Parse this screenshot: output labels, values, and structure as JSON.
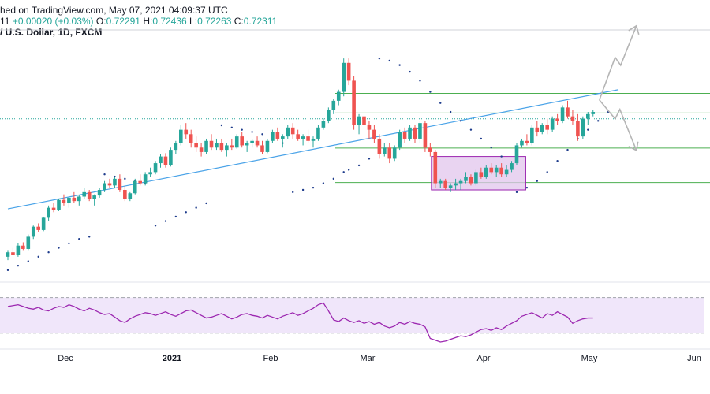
{
  "header": {
    "published": "hed on TradingView.com, May 07, 2021 04:09:37 UTC",
    "change_prefix": "11",
    "change": "+0.00020 (+0.03%)",
    "o_label": "O:",
    "o": "0.72291",
    "h_label": "H:",
    "h": "0.72436",
    "l_label": "L:",
    "l": "0.72263",
    "c_label": "C:",
    "c": "0.72311",
    "symbol": "/ U.S. Dollar, 1D, FXCM"
  },
  "colors": {
    "up": "#26a69a",
    "down": "#ef5350",
    "psar": "#1e3c8c",
    "trendline": "#4aa3e8",
    "levels": "#4caf50",
    "rsi": "#9c27b0",
    "rsi_band": "#e8d9f7",
    "box_fill": "#e1c6ec",
    "box_border": "#9c27b0",
    "arrows": "#b5b5b5"
  },
  "chart_data": {
    "type": "candlestick",
    "timeframe": "1D",
    "x_labels": [
      "Dec",
      "2021",
      "Feb",
      "Mar",
      "Apr",
      "May",
      "Jun"
    ],
    "candles": [
      [
        0.711,
        0.714,
        0.7095,
        0.713
      ],
      [
        0.713,
        0.715,
        0.712,
        0.712
      ],
      [
        0.712,
        0.717,
        0.711,
        0.716
      ],
      [
        0.716,
        0.7175,
        0.714,
        0.7145
      ],
      [
        0.7145,
        0.721,
        0.714,
        0.72
      ],
      [
        0.72,
        0.725,
        0.719,
        0.7245
      ],
      [
        0.7245,
        0.726,
        0.722,
        0.723
      ],
      [
        0.723,
        0.729,
        0.7225,
        0.7285
      ],
      [
        0.7285,
        0.734,
        0.727,
        0.733
      ],
      [
        0.733,
        0.735,
        0.731,
        0.732
      ],
      [
        0.732,
        0.737,
        0.7315,
        0.7365
      ],
      [
        0.7365,
        0.739,
        0.734,
        0.735
      ],
      [
        0.735,
        0.738,
        0.733,
        0.7375
      ],
      [
        0.7375,
        0.74,
        0.735,
        0.736
      ],
      [
        0.736,
        0.7385,
        0.734,
        0.738
      ],
      [
        0.738,
        0.742,
        0.737,
        0.74
      ],
      [
        0.74,
        0.741,
        0.736,
        0.737
      ],
      [
        0.737,
        0.739,
        0.734,
        0.7385
      ],
      [
        0.7385,
        0.742,
        0.7375,
        0.741
      ],
      [
        0.741,
        0.745,
        0.74,
        0.744
      ],
      [
        0.744,
        0.746,
        0.742,
        0.743
      ],
      [
        0.743,
        0.747,
        0.742,
        0.746
      ],
      [
        0.746,
        0.748,
        0.74,
        0.741
      ],
      [
        0.741,
        0.743,
        0.736,
        0.737
      ],
      [
        0.737,
        0.74,
        0.736,
        0.7395
      ],
      [
        0.7395,
        0.746,
        0.739,
        0.745
      ],
      [
        0.745,
        0.748,
        0.743,
        0.744
      ],
      [
        0.744,
        0.749,
        0.743,
        0.748
      ],
      [
        0.748,
        0.751,
        0.747,
        0.749
      ],
      [
        0.749,
        0.754,
        0.748,
        0.753
      ],
      [
        0.753,
        0.757,
        0.751,
        0.756
      ],
      [
        0.756,
        0.7575,
        0.751,
        0.752
      ],
      [
        0.752,
        0.76,
        0.7515,
        0.759
      ],
      [
        0.759,
        0.763,
        0.757,
        0.762
      ],
      [
        0.762,
        0.77,
        0.761,
        0.768
      ],
      [
        0.768,
        0.771,
        0.764,
        0.766
      ],
      [
        0.766,
        0.768,
        0.76,
        0.762
      ],
      [
        0.762,
        0.765,
        0.758,
        0.76
      ],
      [
        0.76,
        0.762,
        0.756,
        0.758
      ],
      [
        0.758,
        0.764,
        0.757,
        0.763
      ],
      [
        0.763,
        0.766,
        0.759,
        0.76
      ],
      [
        0.76,
        0.764,
        0.759,
        0.762
      ],
      [
        0.762,
        0.764,
        0.758,
        0.759
      ],
      [
        0.759,
        0.762,
        0.756,
        0.761
      ],
      [
        0.761,
        0.764,
        0.759,
        0.76
      ],
      [
        0.76,
        0.766,
        0.7595,
        0.765
      ],
      [
        0.765,
        0.767,
        0.76,
        0.761
      ],
      [
        0.761,
        0.763,
        0.758,
        0.762
      ],
      [
        0.762,
        0.764,
        0.76,
        0.763
      ],
      [
        0.763,
        0.765,
        0.76,
        0.761
      ],
      [
        0.761,
        0.763,
        0.757,
        0.758
      ],
      [
        0.758,
        0.764,
        0.7575,
        0.763
      ],
      [
        0.763,
        0.768,
        0.762,
        0.767
      ],
      [
        0.767,
        0.769,
        0.763,
        0.764
      ],
      [
        0.764,
        0.766,
        0.76,
        0.765
      ],
      [
        0.765,
        0.77,
        0.764,
        0.769
      ],
      [
        0.769,
        0.771,
        0.764,
        0.766
      ],
      [
        0.766,
        0.768,
        0.763,
        0.764
      ],
      [
        0.764,
        0.766,
        0.761,
        0.765
      ],
      [
        0.765,
        0.768,
        0.762,
        0.763
      ],
      [
        0.763,
        0.765,
        0.76,
        0.764
      ],
      [
        0.764,
        0.77,
        0.763,
        0.769
      ],
      [
        0.769,
        0.773,
        0.768,
        0.772
      ],
      [
        0.772,
        0.778,
        0.771,
        0.777
      ],
      [
        0.777,
        0.782,
        0.775,
        0.781
      ],
      [
        0.781,
        0.786,
        0.779,
        0.785
      ],
      [
        0.785,
        0.8,
        0.783,
        0.798
      ],
      [
        0.798,
        0.8,
        0.788,
        0.79
      ],
      [
        0.79,
        0.792,
        0.768,
        0.77
      ],
      [
        0.77,
        0.775,
        0.766,
        0.774
      ],
      [
        0.774,
        0.776,
        0.768,
        0.77
      ],
      [
        0.77,
        0.772,
        0.764,
        0.768
      ],
      [
        0.768,
        0.77,
        0.762,
        0.764
      ],
      [
        0.764,
        0.766,
        0.755,
        0.757
      ],
      [
        0.757,
        0.762,
        0.756,
        0.76
      ],
      [
        0.76,
        0.762,
        0.753,
        0.755
      ],
      [
        0.755,
        0.761,
        0.754,
        0.76
      ],
      [
        0.76,
        0.768,
        0.759,
        0.767
      ],
      [
        0.767,
        0.769,
        0.762,
        0.764
      ],
      [
        0.764,
        0.77,
        0.763,
        0.769
      ],
      [
        0.769,
        0.77,
        0.762,
        0.764
      ],
      [
        0.764,
        0.772,
        0.762,
        0.771
      ],
      [
        0.771,
        0.772,
        0.758,
        0.76
      ],
      [
        0.76,
        0.762,
        0.756,
        0.758
      ],
      [
        0.758,
        0.759,
        0.742,
        0.744
      ],
      [
        0.744,
        0.746,
        0.742,
        0.745
      ],
      [
        0.745,
        0.746,
        0.741,
        0.742
      ],
      [
        0.742,
        0.744,
        0.74,
        0.743
      ],
      [
        0.743,
        0.746,
        0.741,
        0.744
      ],
      [
        0.744,
        0.746,
        0.741,
        0.745
      ],
      [
        0.745,
        0.749,
        0.744,
        0.747
      ],
      [
        0.747,
        0.748,
        0.743,
        0.744
      ],
      [
        0.744,
        0.75,
        0.743,
        0.749
      ],
      [
        0.749,
        0.751,
        0.746,
        0.747
      ],
      [
        0.747,
        0.752,
        0.746,
        0.751
      ],
      [
        0.751,
        0.753,
        0.748,
        0.749
      ],
      [
        0.749,
        0.752,
        0.747,
        0.751
      ],
      [
        0.751,
        0.753,
        0.747,
        0.748
      ],
      [
        0.748,
        0.752,
        0.747,
        0.75
      ],
      [
        0.75,
        0.754,
        0.749,
        0.753
      ],
      [
        0.753,
        0.762,
        0.752,
        0.761
      ],
      [
        0.761,
        0.764,
        0.76,
        0.763
      ],
      [
        0.763,
        0.766,
        0.761,
        0.762
      ],
      [
        0.762,
        0.77,
        0.761,
        0.769
      ],
      [
        0.769,
        0.772,
        0.765,
        0.767
      ],
      [
        0.767,
        0.771,
        0.766,
        0.77
      ],
      [
        0.77,
        0.773,
        0.766,
        0.768
      ],
      [
        0.768,
        0.774,
        0.767,
        0.773
      ],
      [
        0.773,
        0.775,
        0.77,
        0.772
      ],
      [
        0.772,
        0.779,
        0.771,
        0.778
      ],
      [
        0.778,
        0.781,
        0.773,
        0.774
      ],
      [
        0.774,
        0.777,
        0.77,
        0.772
      ],
      [
        0.772,
        0.775,
        0.763,
        0.765
      ],
      [
        0.765,
        0.774,
        0.764,
        0.773
      ],
      [
        0.773,
        0.776,
        0.77,
        0.775
      ],
      [
        0.775,
        0.777,
        0.774,
        0.776
      ]
    ],
    "psar": [
      [
        0,
        0.705
      ],
      [
        2,
        0.707
      ],
      [
        4,
        0.709
      ],
      [
        6,
        0.711
      ],
      [
        8,
        0.713
      ],
      [
        10,
        0.715
      ],
      [
        12,
        0.717
      ],
      [
        14,
        0.719
      ],
      [
        16,
        0.72
      ],
      [
        19,
        0.748
      ],
      [
        21,
        0.747
      ],
      [
        23,
        0.746
      ],
      [
        25,
        0.745
      ],
      [
        27,
        0.744
      ],
      [
        29,
        0.725
      ],
      [
        31,
        0.727
      ],
      [
        33,
        0.729
      ],
      [
        35,
        0.731
      ],
      [
        37,
        0.733
      ],
      [
        39,
        0.735
      ],
      [
        42,
        0.77
      ],
      [
        44,
        0.769
      ],
      [
        46,
        0.768
      ],
      [
        48,
        0.767
      ],
      [
        50,
        0.766
      ],
      [
        52,
        0.764
      ],
      [
        54,
        0.762
      ],
      [
        56,
        0.74
      ],
      [
        58,
        0.741
      ],
      [
        60,
        0.742
      ],
      [
        62,
        0.744
      ],
      [
        64,
        0.746
      ],
      [
        66,
        0.749
      ],
      [
        67,
        0.75
      ],
      [
        69,
        0.752
      ],
      [
        71,
        0.755
      ],
      [
        73,
        0.8
      ],
      [
        75,
        0.799
      ],
      [
        77,
        0.797
      ],
      [
        79,
        0.794
      ],
      [
        81,
        0.79
      ],
      [
        83,
        0.785
      ],
      [
        85,
        0.78
      ],
      [
        87,
        0.776
      ],
      [
        89,
        0.772
      ],
      [
        91,
        0.768
      ],
      [
        93,
        0.764
      ],
      [
        95,
        0.76
      ],
      [
        97,
        0.756
      ],
      [
        99,
        0.752
      ],
      [
        100,
        0.74
      ],
      [
        102,
        0.742
      ],
      [
        104,
        0.745
      ],
      [
        106,
        0.749
      ],
      [
        108,
        0.754
      ],
      [
        110,
        0.759
      ],
      [
        112,
        0.764
      ],
      [
        114,
        0.768
      ],
      [
        116,
        0.772
      ],
      [
        118,
        0.776
      ]
    ],
    "trendline": [
      [
        0,
        0.7325
      ],
      [
        120,
        0.786
      ]
    ],
    "levels": [
      0.7843,
      0.7755,
      0.7598,
      0.7443
    ],
    "price_dotted": 0.7729,
    "box": {
      "i0": 84,
      "i1": 101,
      "low": 0.741,
      "high": 0.756
    },
    "rsi": [
      60,
      61,
      62,
      60,
      58,
      57,
      59,
      56,
      55,
      58,
      60,
      59,
      62,
      60,
      57,
      55,
      58,
      56,
      53,
      51,
      52,
      48,
      44,
      42,
      46,
      49,
      51,
      53,
      52,
      50,
      52,
      54,
      51,
      49,
      52,
      55,
      56,
      53,
      50,
      47,
      48,
      50,
      52,
      49,
      46,
      48,
      51,
      52,
      50,
      49,
      47,
      50,
      48,
      46,
      49,
      51,
      53,
      50,
      52,
      55,
      58,
      62,
      64,
      55,
      45,
      43,
      47,
      44,
      42,
      44,
      41,
      43,
      40,
      42,
      38,
      36,
      38,
      42,
      40,
      43,
      41,
      40,
      37,
      24,
      22,
      20,
      21,
      23,
      25,
      27,
      26,
      28,
      31,
      34,
      35,
      33,
      36,
      34,
      38,
      41,
      44,
      49,
      51,
      53,
      50,
      47,
      52,
      50,
      54,
      51,
      48,
      41,
      44,
      46,
      47,
      47
    ],
    "rsi_levels": [
      70,
      30
    ],
    "rsi_range": [
      0,
      100
    ]
  }
}
